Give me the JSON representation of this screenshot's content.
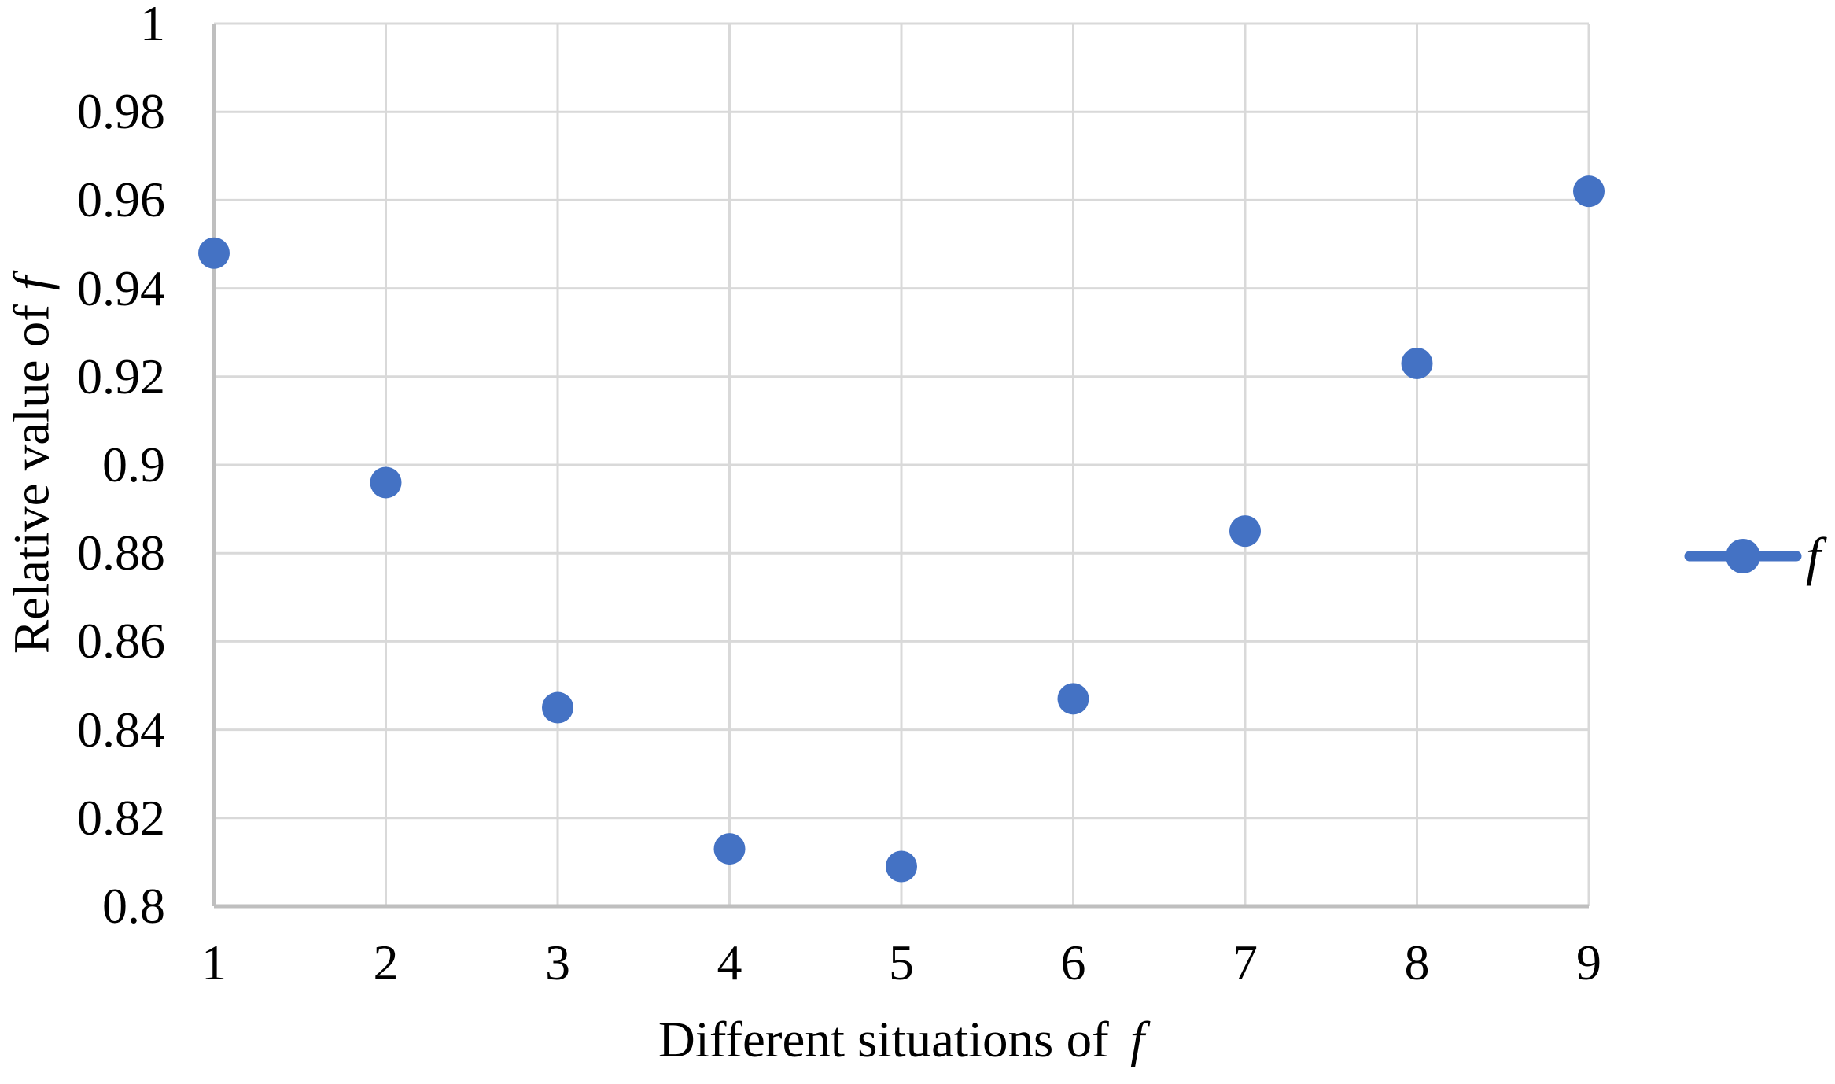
{
  "chart_data": {
    "type": "scatter",
    "x": [
      1,
      2,
      3,
      4,
      5,
      6,
      7,
      8,
      9
    ],
    "series": [
      {
        "name": "f",
        "values": [
          0.948,
          0.896,
          0.845,
          0.813,
          0.809,
          0.847,
          0.885,
          0.923,
          0.962
        ]
      }
    ],
    "xticks": [
      "1",
      "2",
      "3",
      "4",
      "5",
      "6",
      "7",
      "8",
      "9"
    ],
    "yticks": [
      "1",
      "0.98",
      "0.96",
      "0.94",
      "0.92",
      "0.9",
      "0.88",
      "0.86",
      "0.84",
      "0.82",
      "0.8"
    ],
    "ylim": [
      0.8,
      1
    ],
    "xlabel_text": "Different situations of",
    "xlabel_var": "f",
    "ylabel_text": "Relative value of",
    "ylabel_var": "f",
    "legend_label": "f",
    "legend_position": "right",
    "grid": true,
    "marker_color": "#4472C4",
    "gridline_color": "#D9D9D9",
    "axis_line_color": "#BFBFBF",
    "text_color": "#000000",
    "background_color": "#FFFFFF"
  }
}
